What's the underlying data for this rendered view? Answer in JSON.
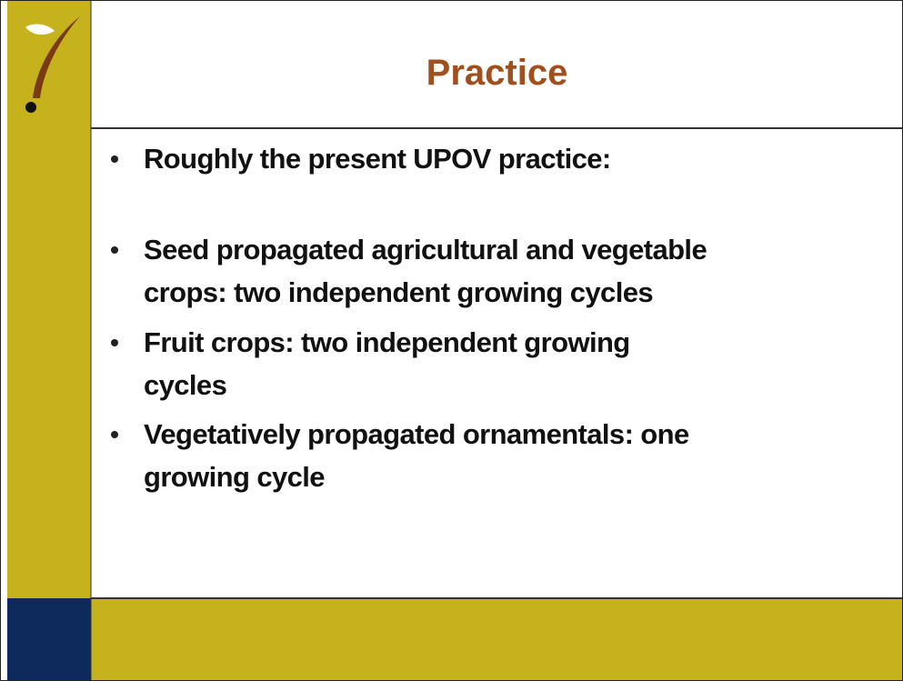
{
  "slide": {
    "title": "Practice",
    "bullets": [
      {
        "lines": [
          "Roughly the present UPOV practice:"
        ]
      },
      {
        "lines": [
          "Seed propagated agricultural and vegetable",
          "crops: two independent growing cycles"
        ]
      },
      {
        "lines": [
          "Fruit crops: two independent growing",
          "cycles"
        ]
      },
      {
        "lines": [
          "Vegetatively propagated ornamentals: one",
          "growing cycle"
        ]
      }
    ]
  }
}
